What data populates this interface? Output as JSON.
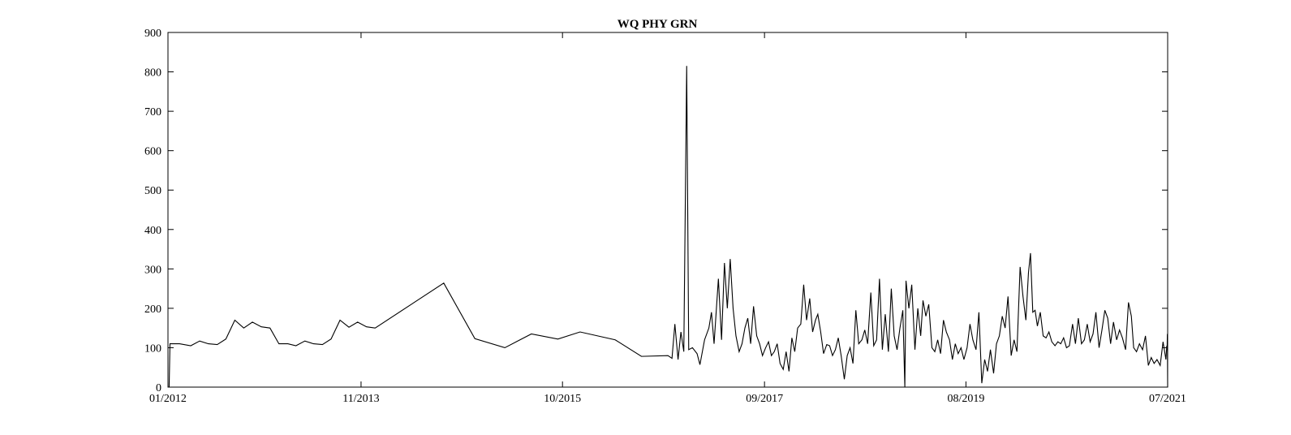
{
  "chart_data": {
    "type": "line",
    "title": "WQ PHY GRN",
    "xlabel": "",
    "ylabel": "",
    "ylim": [
      0,
      900
    ],
    "yticks": [
      0,
      100,
      200,
      300,
      400,
      500,
      600,
      700,
      800,
      900
    ],
    "xlim": [
      "2012-01-01",
      "2021-07-01"
    ],
    "xticks": [
      {
        "date": "2012-01-01",
        "label": "01/2012"
      },
      {
        "date": "2013-11-01",
        "label": "11/2013"
      },
      {
        "date": "2015-10-01",
        "label": "10/2015"
      },
      {
        "date": "2017-09-01",
        "label": "09/2017"
      },
      {
        "date": "2019-08-01",
        "label": "08/2019"
      },
      {
        "date": "2021-07-01",
        "label": "07/2021"
      }
    ],
    "grid": false,
    "series": [
      {
        "color": "#000000",
        "points": [
          [
            "2012-01-05",
            0
          ],
          [
            "2012-01-08",
            110
          ],
          [
            "2012-02-10",
            110
          ],
          [
            "2012-03-20",
            105
          ],
          [
            "2012-04-20",
            117
          ],
          [
            "2012-05-20",
            110
          ],
          [
            "2012-06-20",
            108
          ],
          [
            "2012-07-20",
            122
          ],
          [
            "2012-08-20",
            170
          ],
          [
            "2012-09-20",
            150
          ],
          [
            "2012-10-20",
            165
          ],
          [
            "2012-11-20",
            153
          ],
          [
            "2012-12-20",
            150
          ],
          [
            "2013-01-20",
            110
          ],
          [
            "2013-02-20",
            110
          ],
          [
            "2013-03-20",
            105
          ],
          [
            "2013-04-20",
            117
          ],
          [
            "2013-05-20",
            110
          ],
          [
            "2013-06-20",
            108
          ],
          [
            "2013-07-20",
            122
          ],
          [
            "2013-08-20",
            170
          ],
          [
            "2013-09-20",
            152
          ],
          [
            "2013-10-20",
            165
          ],
          [
            "2013-11-20",
            153
          ],
          [
            "2013-12-20",
            150
          ],
          [
            "2014-08-15",
            264
          ],
          [
            "2014-12-01",
            123
          ],
          [
            "2015-03-15",
            100
          ],
          [
            "2015-06-15",
            135
          ],
          [
            "2015-09-15",
            122
          ],
          [
            "2015-12-01",
            140
          ],
          [
            "2016-04-01",
            120
          ],
          [
            "2016-07-01",
            78
          ],
          [
            "2016-10-01",
            80
          ],
          [
            "2016-10-15",
            73
          ],
          [
            "2016-10-25",
            160
          ],
          [
            "2016-11-05",
            70
          ],
          [
            "2016-11-15",
            140
          ],
          [
            "2016-11-25",
            90
          ],
          [
            "2016-12-05",
            815
          ],
          [
            "2016-12-12",
            95
          ],
          [
            "2016-12-25",
            100
          ],
          [
            "2017-01-10",
            85
          ],
          [
            "2017-01-20",
            57
          ],
          [
            "2017-02-05",
            120
          ],
          [
            "2017-02-20",
            150
          ],
          [
            "2017-03-01",
            190
          ],
          [
            "2017-03-10",
            110
          ],
          [
            "2017-03-25",
            275
          ],
          [
            "2017-04-05",
            120
          ],
          [
            "2017-04-15",
            315
          ],
          [
            "2017-04-25",
            200
          ],
          [
            "2017-05-05",
            325
          ],
          [
            "2017-05-15",
            200
          ],
          [
            "2017-05-25",
            130
          ],
          [
            "2017-06-05",
            90
          ],
          [
            "2017-06-15",
            110
          ],
          [
            "2017-06-25",
            150
          ],
          [
            "2017-07-05",
            175
          ],
          [
            "2017-07-15",
            110
          ],
          [
            "2017-07-25",
            205
          ],
          [
            "2017-08-05",
            130
          ],
          [
            "2017-08-15",
            110
          ],
          [
            "2017-08-25",
            80
          ],
          [
            "2017-09-05",
            100
          ],
          [
            "2017-09-15",
            115
          ],
          [
            "2017-09-25",
            80
          ],
          [
            "2017-10-05",
            90
          ],
          [
            "2017-10-15",
            110
          ],
          [
            "2017-10-25",
            60
          ],
          [
            "2017-11-05",
            45
          ],
          [
            "2017-11-15",
            90
          ],
          [
            "2017-11-25",
            40
          ],
          [
            "2017-12-05",
            125
          ],
          [
            "2017-12-15",
            90
          ],
          [
            "2017-12-25",
            150
          ],
          [
            "2018-01-05",
            160
          ],
          [
            "2018-01-15",
            260
          ],
          [
            "2018-01-25",
            170
          ],
          [
            "2018-02-05",
            225
          ],
          [
            "2018-02-15",
            140
          ],
          [
            "2018-02-25",
            170
          ],
          [
            "2018-03-05",
            185
          ],
          [
            "2018-03-15",
            140
          ],
          [
            "2018-03-25",
            85
          ],
          [
            "2018-04-05",
            108
          ],
          [
            "2018-04-15",
            105
          ],
          [
            "2018-04-25",
            80
          ],
          [
            "2018-05-05",
            95
          ],
          [
            "2018-05-15",
            125
          ],
          [
            "2018-05-25",
            80
          ],
          [
            "2018-06-05",
            20
          ],
          [
            "2018-06-15",
            80
          ],
          [
            "2018-06-25",
            100
          ],
          [
            "2018-07-05",
            60
          ],
          [
            "2018-07-15",
            195
          ],
          [
            "2018-07-25",
            110
          ],
          [
            "2018-08-05",
            120
          ],
          [
            "2018-08-15",
            145
          ],
          [
            "2018-08-25",
            110
          ],
          [
            "2018-09-05",
            240
          ],
          [
            "2018-09-15",
            105
          ],
          [
            "2018-09-25",
            120
          ],
          [
            "2018-10-05",
            275
          ],
          [
            "2018-10-15",
            95
          ],
          [
            "2018-10-25",
            185
          ],
          [
            "2018-11-05",
            90
          ],
          [
            "2018-11-15",
            250
          ],
          [
            "2018-11-25",
            130
          ],
          [
            "2018-12-05",
            95
          ],
          [
            "2018-12-15",
            150
          ],
          [
            "2018-12-25",
            195
          ],
          [
            "2019-01-01",
            0
          ],
          [
            "2019-01-05",
            270
          ],
          [
            "2019-01-15",
            200
          ],
          [
            "2019-01-25",
            260
          ],
          [
            "2019-02-05",
            95
          ],
          [
            "2019-02-15",
            200
          ],
          [
            "2019-02-25",
            130
          ],
          [
            "2019-03-05",
            220
          ],
          [
            "2019-03-15",
            180
          ],
          [
            "2019-03-25",
            210
          ],
          [
            "2019-04-05",
            100
          ],
          [
            "2019-04-15",
            90
          ],
          [
            "2019-04-25",
            120
          ],
          [
            "2019-05-05",
            85
          ],
          [
            "2019-05-15",
            170
          ],
          [
            "2019-05-25",
            140
          ],
          [
            "2019-06-05",
            120
          ],
          [
            "2019-06-15",
            70
          ],
          [
            "2019-06-25",
            110
          ],
          [
            "2019-07-05",
            85
          ],
          [
            "2019-07-15",
            100
          ],
          [
            "2019-07-25",
            70
          ],
          [
            "2019-08-05",
            100
          ],
          [
            "2019-08-15",
            160
          ],
          [
            "2019-08-25",
            120
          ],
          [
            "2019-09-05",
            95
          ],
          [
            "2019-09-15",
            190
          ],
          [
            "2019-09-25",
            10
          ],
          [
            "2019-10-05",
            70
          ],
          [
            "2019-10-15",
            40
          ],
          [
            "2019-10-25",
            95
          ],
          [
            "2019-11-05",
            35
          ],
          [
            "2019-11-15",
            110
          ],
          [
            "2019-11-25",
            130
          ],
          [
            "2019-12-05",
            180
          ],
          [
            "2019-12-15",
            150
          ],
          [
            "2019-12-25",
            230
          ],
          [
            "2020-01-05",
            80
          ],
          [
            "2020-01-15",
            120
          ],
          [
            "2020-01-25",
            90
          ],
          [
            "2020-02-05",
            305
          ],
          [
            "2020-02-15",
            230
          ],
          [
            "2020-02-25",
            170
          ],
          [
            "2020-03-05",
            290
          ],
          [
            "2020-03-12",
            340
          ],
          [
            "2020-03-20",
            190
          ],
          [
            "2020-03-28",
            195
          ],
          [
            "2020-04-05",
            155
          ],
          [
            "2020-04-15",
            190
          ],
          [
            "2020-04-25",
            130
          ],
          [
            "2020-05-05",
            125
          ],
          [
            "2020-05-15",
            140
          ],
          [
            "2020-05-25",
            115
          ],
          [
            "2020-06-05",
            105
          ],
          [
            "2020-06-15",
            115
          ],
          [
            "2020-06-25",
            110
          ],
          [
            "2020-07-05",
            125
          ],
          [
            "2020-07-15",
            100
          ],
          [
            "2020-07-25",
            105
          ],
          [
            "2020-08-05",
            160
          ],
          [
            "2020-08-15",
            110
          ],
          [
            "2020-08-25",
            175
          ],
          [
            "2020-09-05",
            110
          ],
          [
            "2020-09-15",
            120
          ],
          [
            "2020-09-25",
            160
          ],
          [
            "2020-10-05",
            115
          ],
          [
            "2020-10-15",
            135
          ],
          [
            "2020-10-25",
            190
          ],
          [
            "2020-11-05",
            100
          ],
          [
            "2020-11-15",
            145
          ],
          [
            "2020-11-25",
            195
          ],
          [
            "2020-12-05",
            175
          ],
          [
            "2020-12-15",
            110
          ],
          [
            "2020-12-25",
            165
          ],
          [
            "2021-01-05",
            120
          ],
          [
            "2021-01-15",
            145
          ],
          [
            "2021-01-25",
            125
          ],
          [
            "2021-02-05",
            95
          ],
          [
            "2021-02-15",
            215
          ],
          [
            "2021-02-25",
            180
          ],
          [
            "2021-03-05",
            100
          ],
          [
            "2021-03-15",
            90
          ],
          [
            "2021-03-25",
            110
          ],
          [
            "2021-04-05",
            95
          ],
          [
            "2021-04-15",
            130
          ],
          [
            "2021-04-25",
            55
          ],
          [
            "2021-05-05",
            75
          ],
          [
            "2021-05-15",
            60
          ],
          [
            "2021-05-25",
            70
          ],
          [
            "2021-06-05",
            55
          ],
          [
            "2021-06-15",
            115
          ],
          [
            "2021-06-25",
            70
          ],
          [
            "2021-06-28",
            105
          ],
          [
            "2021-06-29",
            95
          ],
          [
            "2021-06-30",
            135
          ],
          [
            "2021-07-01",
            0
          ]
        ]
      }
    ]
  }
}
